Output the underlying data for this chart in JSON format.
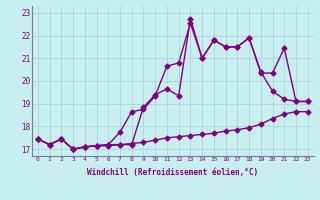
{
  "title": "",
  "xlabel": "Windchill (Refroidissement éolien,°C)",
  "ylabel": "",
  "bg_color": "#c8eef0",
  "line_color": "#800080",
  "grid_color": "#aad4d8",
  "xlim": [
    -0.5,
    23.5
  ],
  "ylim": [
    16.7,
    23.3
  ],
  "xticks": [
    0,
    1,
    2,
    3,
    4,
    5,
    6,
    7,
    8,
    9,
    10,
    11,
    12,
    13,
    14,
    15,
    16,
    17,
    18,
    19,
    20,
    21,
    22,
    23
  ],
  "yticks": [
    17,
    18,
    19,
    20,
    21,
    22,
    23
  ],
  "series1_x": [
    0,
    1,
    2,
    3,
    4,
    5,
    6,
    7,
    8,
    9,
    10,
    11,
    12,
    13,
    14,
    15,
    16,
    17,
    18,
    19,
    20,
    21,
    22,
    23
  ],
  "series1_y": [
    17.45,
    17.2,
    17.45,
    17.0,
    17.1,
    17.15,
    17.15,
    17.2,
    17.25,
    17.3,
    17.4,
    17.5,
    17.55,
    17.6,
    17.65,
    17.7,
    17.8,
    17.85,
    17.95,
    18.1,
    18.35,
    18.55,
    18.65,
    18.65
  ],
  "series2_x": [
    0,
    1,
    2,
    3,
    4,
    5,
    6,
    7,
    8,
    9,
    10,
    11,
    12,
    13,
    14,
    15,
    16,
    17,
    18,
    19,
    20,
    21,
    22,
    23
  ],
  "series2_y": [
    17.45,
    17.2,
    17.45,
    17.0,
    17.1,
    17.15,
    17.2,
    17.75,
    18.65,
    18.75,
    19.35,
    20.65,
    20.8,
    22.55,
    21.0,
    21.8,
    21.5,
    21.5,
    21.9,
    20.35,
    20.35,
    21.45,
    19.1,
    19.1
  ],
  "series3_x": [
    0,
    1,
    2,
    3,
    4,
    5,
    6,
    7,
    8,
    9,
    10,
    11,
    12,
    13,
    14,
    15,
    16,
    17,
    18,
    19,
    20,
    21,
    22,
    23
  ],
  "series3_y": [
    17.45,
    17.2,
    17.45,
    17.0,
    17.1,
    17.15,
    17.2,
    17.2,
    17.2,
    18.85,
    19.4,
    19.65,
    19.35,
    22.75,
    21.0,
    21.8,
    21.5,
    21.5,
    21.9,
    20.4,
    19.55,
    19.2,
    19.1,
    19.1
  ],
  "marker": "D",
  "markersize": 2.5,
  "linewidth": 1.0
}
